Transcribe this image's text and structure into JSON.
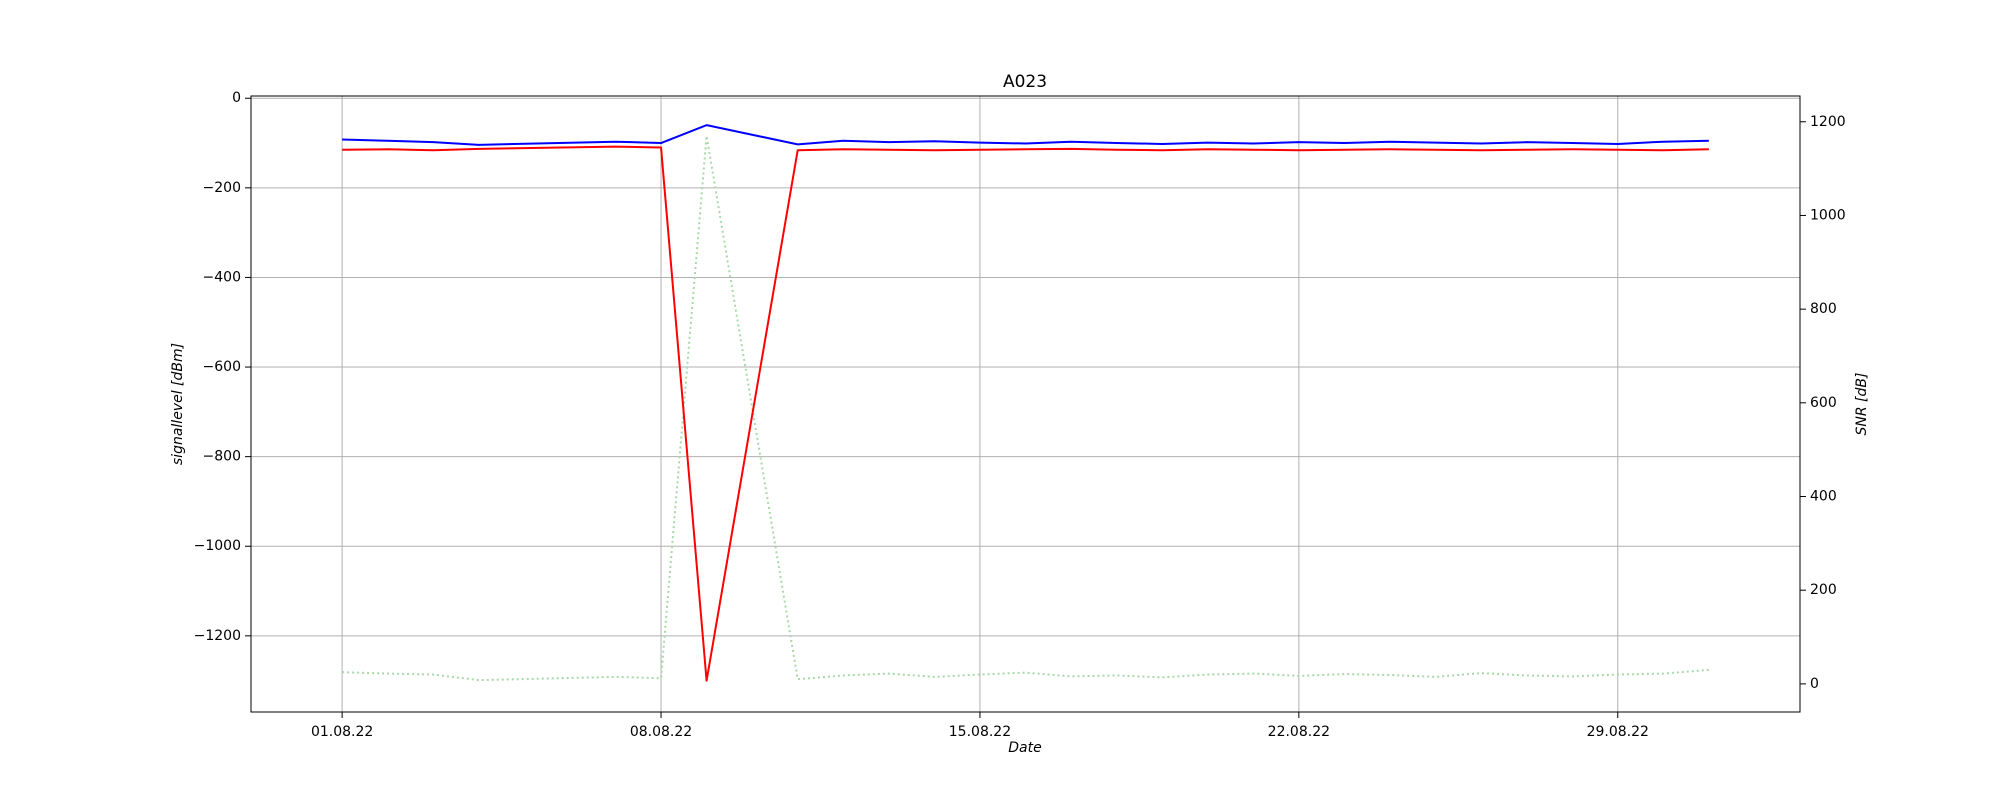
{
  "chart_data": {
    "type": "line",
    "title": "A023",
    "xlabel": "Date",
    "ylabel": "signallevel [dBm]",
    "y2label": "SNR [dB]",
    "x": [
      "2022-08-01",
      "2022-08-02",
      "2022-08-03",
      "2022-08-04",
      "2022-08-07",
      "2022-08-08",
      "2022-08-09",
      "2022-08-11",
      "2022-08-12",
      "2022-08-13",
      "2022-08-14",
      "2022-08-15",
      "2022-08-16",
      "2022-08-17",
      "2022-08-18",
      "2022-08-19",
      "2022-08-20",
      "2022-08-21",
      "2022-08-22",
      "2022-08-23",
      "2022-08-24",
      "2022-08-25",
      "2022-08-26",
      "2022-08-27",
      "2022-08-28",
      "2022-08-29",
      "2022-08-30",
      "2022-08-31"
    ],
    "series": [
      {
        "color": "#0000ff",
        "linestyle": "solid",
        "axis": "y",
        "values": [
          -92,
          -95,
          -98,
          -104,
          -97,
          -100,
          -60,
          -103,
          -95,
          -98,
          -96,
          -99,
          -101,
          -97,
          -100,
          -102,
          -99,
          -101,
          -98,
          -100,
          -97,
          -99,
          -101,
          -98,
          -100,
          -102,
          -97,
          -95
        ]
      },
      {
        "color": "#ff0000",
        "linestyle": "solid",
        "axis": "y",
        "values": [
          -115,
          -114,
          -116,
          -113,
          -108,
          -110,
          -1300,
          -116,
          -114,
          -115,
          -116,
          -115,
          -114,
          -113,
          -115,
          -116,
          -114,
          -115,
          -116,
          -115,
          -114,
          -115,
          -116,
          -115,
          -114,
          -115,
          -116,
          -114
        ]
      },
      {
        "color": "#a8d8a8",
        "linestyle": "dotted",
        "axis": "y2",
        "values": [
          25,
          22,
          20,
          8,
          15,
          12,
          1170,
          10,
          18,
          22,
          15,
          20,
          24,
          16,
          18,
          14,
          20,
          22,
          17,
          21,
          19,
          15,
          23,
          18,
          16,
          20,
          22,
          30
        ]
      }
    ],
    "xlim": [
      "2022-07-30",
      "2022-09-02"
    ],
    "xticks": [
      {
        "value": "2022-08-01",
        "label": "01.08.22"
      },
      {
        "value": "2022-08-08",
        "label": "08.08.22"
      },
      {
        "value": "2022-08-15",
        "label": "15.08.22"
      },
      {
        "value": "2022-08-22",
        "label": "22.08.22"
      },
      {
        "value": "2022-08-29",
        "label": "29.08.22"
      }
    ],
    "ylim": [
      -1370,
      5
    ],
    "yticks": [
      0,
      {
        "value": -200,
        "label": "−200"
      },
      {
        "value": -400,
        "label": "−400"
      },
      {
        "value": -600,
        "label": "−600"
      },
      {
        "value": -800,
        "label": "−800"
      },
      {
        "value": -1000,
        "label": "−1000"
      },
      {
        "value": -1200,
        "label": "−1200"
      }
    ],
    "y2lim": [
      -60,
      1255
    ],
    "y2ticks": [
      0,
      200,
      400,
      600,
      800,
      1000,
      1200
    ],
    "grid": true
  }
}
